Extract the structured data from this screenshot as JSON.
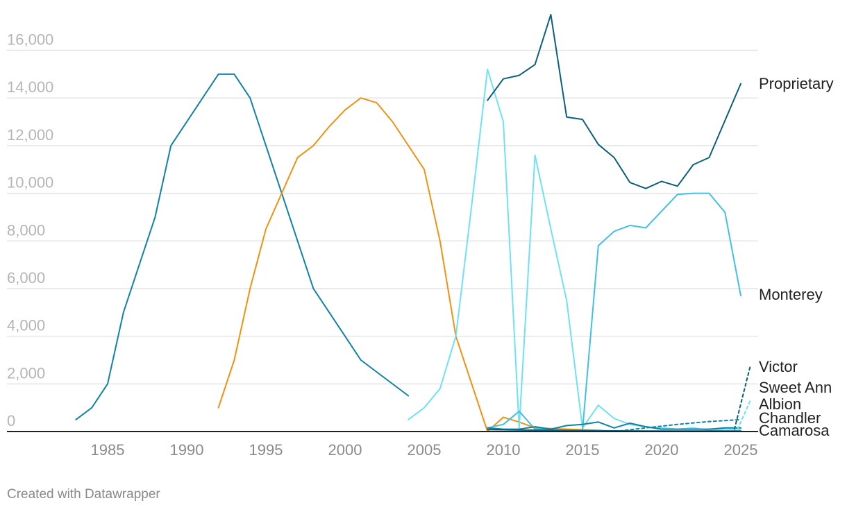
{
  "footer": {
    "credit": "Created with Datawrapper"
  },
  "chart_data": {
    "type": "line",
    "title": "",
    "xlabel": "",
    "ylabel": "",
    "xlim": [
      1979,
      2026
    ],
    "ylim": [
      0,
      17500
    ],
    "x_ticks": [
      "1985",
      "1990",
      "1995",
      "2000",
      "2005",
      "2010",
      "2015",
      "2020",
      "2025"
    ],
    "y_ticks": [
      "0",
      "2,000",
      "4,000",
      "6,000",
      "8,000",
      "10,000",
      "12,000",
      "14,000",
      "16,000"
    ],
    "grid": true,
    "legend": "direct labels at right end of lines",
    "series": [
      {
        "name": "",
        "color": "#0f82a5",
        "dashed": false,
        "x": [
          1983,
          1984,
          1985,
          1986,
          1988,
          1989,
          1992,
          1993,
          1994,
          1998,
          2001,
          2004
        ],
        "y": [
          500,
          1000,
          2000,
          5000,
          9000,
          12000,
          15000,
          15000,
          14000,
          6000,
          3000,
          1500
        ]
      },
      {
        "name": "",
        "color": "#f2910f",
        "dashed": false,
        "x": [
          1992,
          1993,
          1994,
          1995,
          1997,
          1998,
          1999,
          2000,
          2001,
          2002,
          2003,
          2005,
          2006,
          2007,
          2008,
          2009,
          2010,
          2011,
          2012,
          2014,
          2016,
          2017
        ],
        "y": [
          1000,
          3000,
          6000,
          8500,
          11500,
          12000,
          12800,
          13500,
          14000,
          13800,
          13000,
          11000,
          8000,
          4000,
          2000,
          0,
          600,
          400,
          150,
          100,
          50,
          0
        ]
      },
      {
        "name": "",
        "color": "#6ee2f5",
        "dashed": false,
        "x": [
          2004,
          2005,
          2006,
          2007,
          2008,
          2009,
          2010,
          2011,
          2012,
          2013,
          2014,
          2015,
          2016,
          2017,
          2018,
          2019,
          2020,
          2021,
          2022,
          2023,
          2024,
          2025
        ],
        "y": [
          500,
          1000,
          1800,
          4000,
          9500,
          15200,
          13000,
          150,
          11600,
          8500,
          5500,
          150,
          1100,
          550,
          300,
          200,
          150,
          100,
          150,
          50,
          100,
          100
        ]
      },
      {
        "name": "Proprietary",
        "color": "#0b5f7c",
        "dashed": false,
        "x": [
          2009,
          2010,
          2011,
          2012,
          2013,
          2014,
          2015,
          2016,
          2017,
          2018,
          2019,
          2020,
          2021,
          2022,
          2023,
          2025
        ],
        "y": [
          13900,
          14800,
          14950,
          15400,
          17500,
          13200,
          13100,
          12050,
          11500,
          10450,
          10200,
          10500,
          10300,
          11200,
          11500,
          14600
        ]
      },
      {
        "name": "Monterey",
        "color": "#40c1e3",
        "dashed": false,
        "x": [
          2009,
          2010,
          2011,
          2012,
          2013,
          2014,
          2015,
          2016,
          2017,
          2018,
          2019,
          2020,
          2021,
          2022,
          2023,
          2024,
          2025
        ],
        "y": [
          150,
          300,
          850,
          100,
          80,
          50,
          50,
          7800,
          8400,
          8650,
          8550,
          9250,
          9950,
          10000,
          10000,
          9200,
          5700
        ]
      },
      {
        "name": "Victor",
        "color": "#0b5f7c",
        "dashed": true,
        "x": [
          2024.6,
          2025.6
        ],
        "y": [
          100,
          2750
        ]
      },
      {
        "name": "Sweet Ann",
        "color": "#0f82a5",
        "dashed": false,
        "x": [
          2009,
          2010,
          2011,
          2012,
          2013,
          2014,
          2015,
          2016,
          2017,
          2018,
          2019,
          2020,
          2021,
          2022,
          2023,
          2024,
          2025
        ],
        "y": [
          150,
          100,
          100,
          200,
          100,
          250,
          300,
          400,
          150,
          350,
          200,
          100,
          100,
          100,
          100,
          150,
          150
        ]
      },
      {
        "name": "Albion",
        "color": "#6ee2f5",
        "dashed": true,
        "x": [
          2024.8,
          2025.6
        ],
        "y": [
          100,
          1300
        ]
      },
      {
        "name": "Chandler",
        "color": "#0f82a5",
        "dashed": true,
        "x": [
          2017,
          2019,
          2021,
          2023,
          2025
        ],
        "y": [
          0,
          150,
          300,
          420,
          500
        ]
      },
      {
        "name": "Camarosa",
        "color": "#0b5f7c",
        "dashed": false,
        "x": [
          2009,
          2011,
          2013,
          2015,
          2017,
          2019,
          2021,
          2023,
          2025
        ],
        "y": [
          80,
          60,
          50,
          40,
          30,
          20,
          20,
          20,
          20
        ]
      }
    ]
  }
}
